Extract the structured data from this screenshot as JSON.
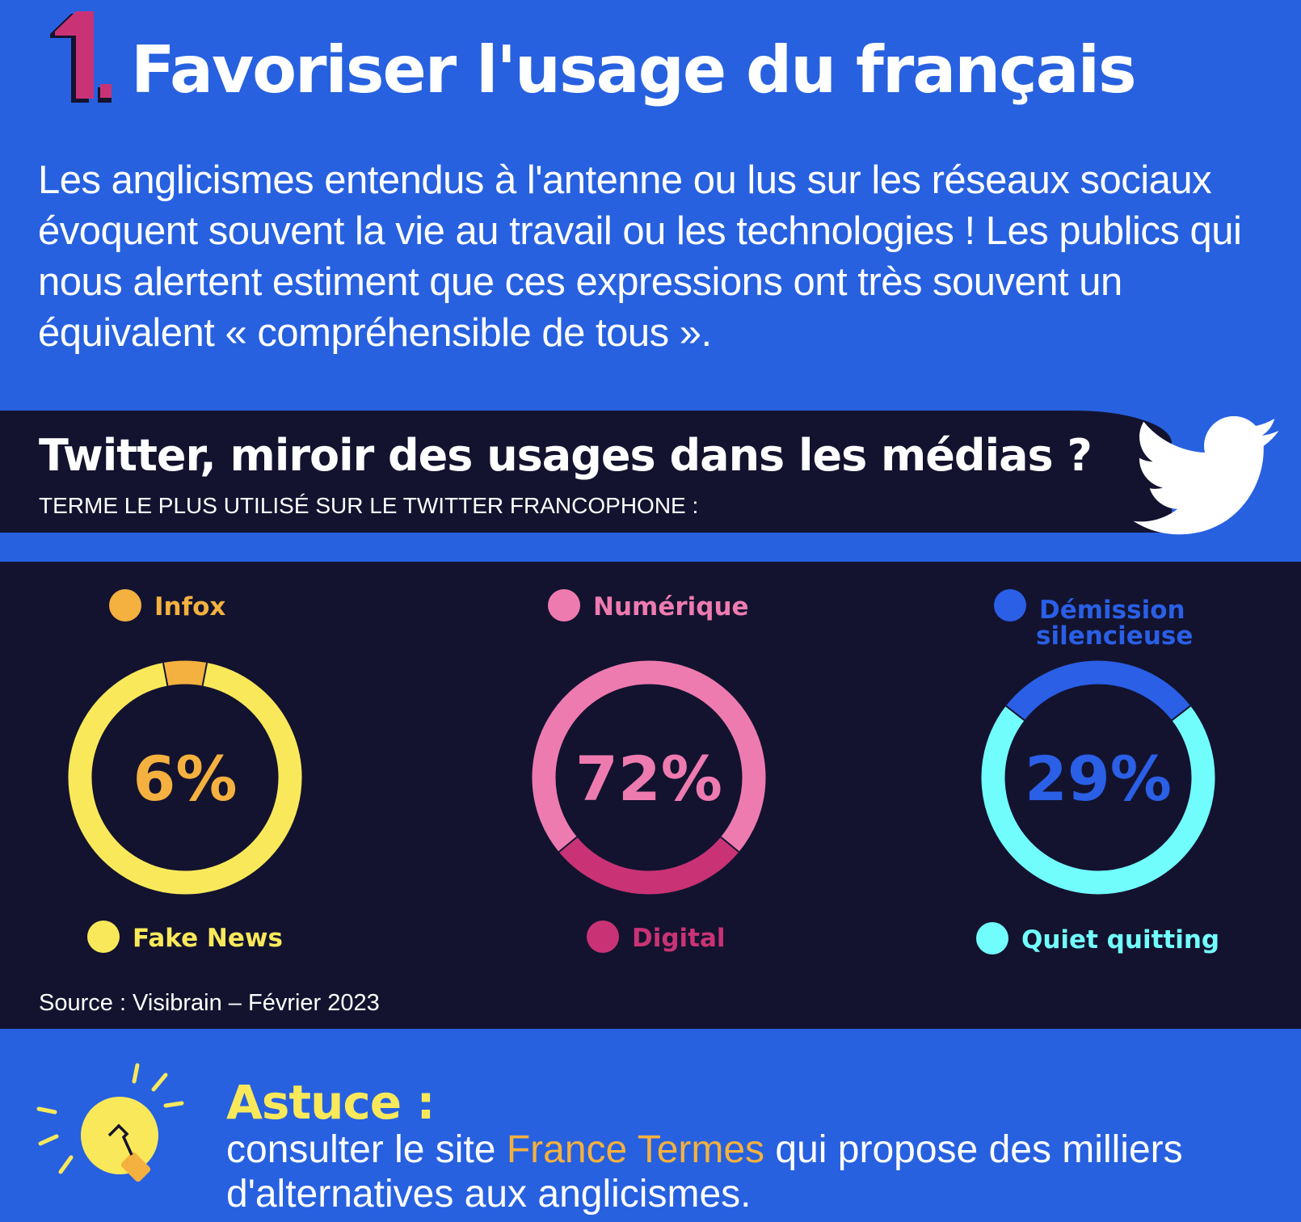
{
  "header": {
    "number": "1.",
    "title": "Favoriser l'usage du français",
    "intro": "Les anglicismes entendus à l'antenne ou lus sur les réseaux sociaux évoquent souvent la vie au travail ou les technologies ! Les publics qui nous alertent estiment que ces expressions ont très souvent un équivalent « compréhensible de tous »."
  },
  "banner": {
    "title": "Twitter, miroir des usages dans les médias ?",
    "subtitle": "TERME LE PLUS UTILISÉ SUR LE TWITTER FRANCOPHONE :",
    "icon": "twitter-bird-icon"
  },
  "colors": {
    "background": "#2761E0",
    "panel": "#13132F",
    "yellow": "#F9E95A",
    "orange": "#F4B13F",
    "pink": "#EE7BB0",
    "dark_pink": "#C93375",
    "blue": "#2A5FE6",
    "cyan": "#72FDFD"
  },
  "chart_data": [
    {
      "type": "pie",
      "style": "donut",
      "center_label": "6%",
      "series": [
        {
          "name": "Infox",
          "value": 6,
          "color": "#F4B13F"
        },
        {
          "name": "Fake News",
          "value": 94,
          "color": "#F9E95A"
        }
      ]
    },
    {
      "type": "pie",
      "style": "donut",
      "center_label": "72%",
      "series": [
        {
          "name": "Numérique",
          "value": 72,
          "color": "#EE7BB0"
        },
        {
          "name": "Digital",
          "value": 28,
          "color": "#C93375"
        }
      ]
    },
    {
      "type": "pie",
      "style": "donut",
      "center_label": "29%",
      "series": [
        {
          "name": "Démission silencieuse",
          "value": 29,
          "color": "#2A5FE6"
        },
        {
          "name": "Quiet quitting",
          "value": 71,
          "color": "#72FDFD"
        }
      ]
    }
  ],
  "source": "Source : Visibrain – Février 2023",
  "tip": {
    "title": "Astuce :",
    "text_before": "consulter le site ",
    "link": "France Termes",
    "text_after": " qui propose des milliers d'alternatives aux anglicismes.",
    "icon": "lightbulb-icon"
  }
}
